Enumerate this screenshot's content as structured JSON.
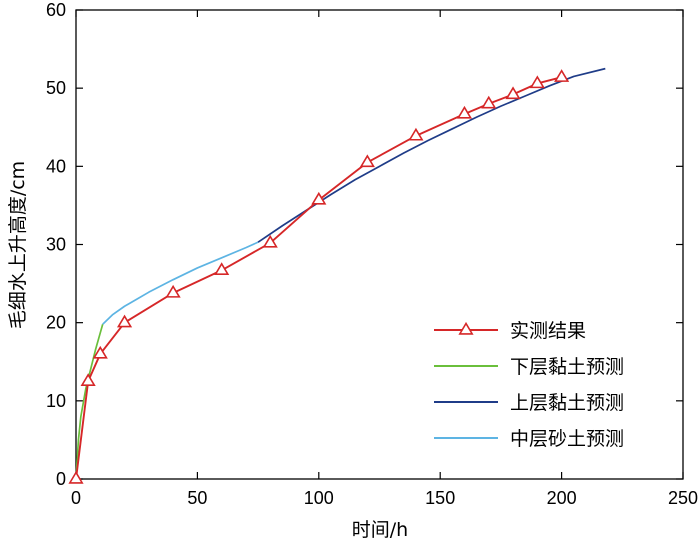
{
  "chart_data": {
    "type": "line",
    "title": "",
    "xlabel": "时间/h",
    "ylabel": "毛细水上升高度/cm",
    "xlim": [
      0,
      250
    ],
    "ylim": [
      0,
      60
    ],
    "xticks": [
      0,
      50,
      100,
      150,
      200,
      250
    ],
    "yticks": [
      0,
      10,
      20,
      30,
      40,
      50,
      60
    ],
    "xtick_labels": [
      "0",
      "50",
      "100",
      "150",
      "200",
      "250"
    ],
    "ytick_labels": [
      "0",
      "10",
      "20",
      "30",
      "40",
      "50",
      "60"
    ],
    "grid": false,
    "legend_position": "bottom-right",
    "series": [
      {
        "name": "实测结果",
        "color": "#d62728",
        "marker": "triangle-open",
        "x": [
          0,
          5,
          10,
          20,
          40,
          60,
          80,
          100,
          120,
          140,
          160,
          170,
          180,
          190,
          200
        ],
        "y": [
          0,
          12.5,
          16,
          20,
          23.8,
          26.7,
          30.2,
          35.7,
          40.5,
          43.9,
          46.7,
          48,
          49.2,
          50.6,
          51.4
        ]
      },
      {
        "name": "下层黏土预测",
        "color": "#6abf3b",
        "marker": "none",
        "x": [
          0,
          1,
          2,
          4,
          6,
          8,
          10,
          11
        ],
        "y": [
          0,
          5,
          8,
          11.5,
          14,
          16.5,
          18.7,
          19.8
        ]
      },
      {
        "name": "上层黏土预测",
        "color": "#1f3c88",
        "marker": "none",
        "x": [
          75,
          85,
          95,
          105,
          115,
          125,
          135,
          145,
          155,
          165,
          175,
          185,
          195,
          205,
          218
        ],
        "y": [
          30.3,
          32.4,
          34.4,
          36.4,
          38.3,
          40.0,
          41.7,
          43.3,
          44.8,
          46.3,
          47.7,
          49.0,
          50.3,
          51.5,
          52.5
        ]
      },
      {
        "name": "中层砂土预测",
        "color": "#5db4e3",
        "marker": "none",
        "x": [
          11,
          15,
          20,
          25,
          30,
          40,
          50,
          60,
          70,
          75
        ],
        "y": [
          19.8,
          21.0,
          22.1,
          23.0,
          23.9,
          25.5,
          27.0,
          28.3,
          29.6,
          30.3
        ]
      }
    ]
  }
}
